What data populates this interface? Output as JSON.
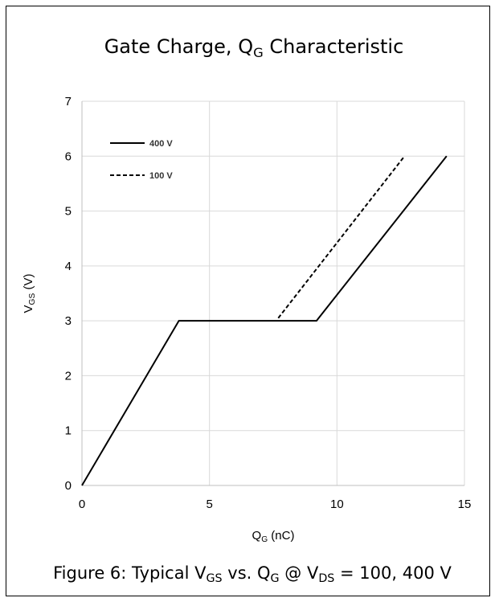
{
  "chart_data": {
    "type": "line",
    "title": {
      "main": "Gate Charge, Q",
      "sub": "G",
      "rest": " Characteristic"
    },
    "xlabel": {
      "main": "Q",
      "sub": "G",
      "rest": " (nC)"
    },
    "ylabel": {
      "main": "V",
      "sub": "GS",
      "rest": " (V)"
    },
    "xlim": [
      0,
      15
    ],
    "ylim": [
      0,
      7
    ],
    "xticks": [
      0,
      5,
      10,
      15
    ],
    "yticks": [
      0,
      1,
      2,
      3,
      4,
      5,
      6,
      7
    ],
    "grid": true,
    "legend_position": "top-left",
    "series": [
      {
        "name": "400 V",
        "style": "solid",
        "color": "#000000",
        "x": [
          0,
          3.8,
          9.2,
          14.3
        ],
        "y": [
          0,
          3,
          3,
          6
        ]
      },
      {
        "name": "100 V",
        "style": "dashed",
        "color": "#000000",
        "x": [
          7.7,
          12.65
        ],
        "y": [
          3.05,
          6
        ]
      }
    ]
  },
  "caption": {
    "p1": "Figure 6: Typical V",
    "s1": "GS",
    "p2": " vs. Q",
    "s2": "G",
    "p3": " @ V",
    "s3": "DS",
    "p4": " = 100, 400 V"
  }
}
